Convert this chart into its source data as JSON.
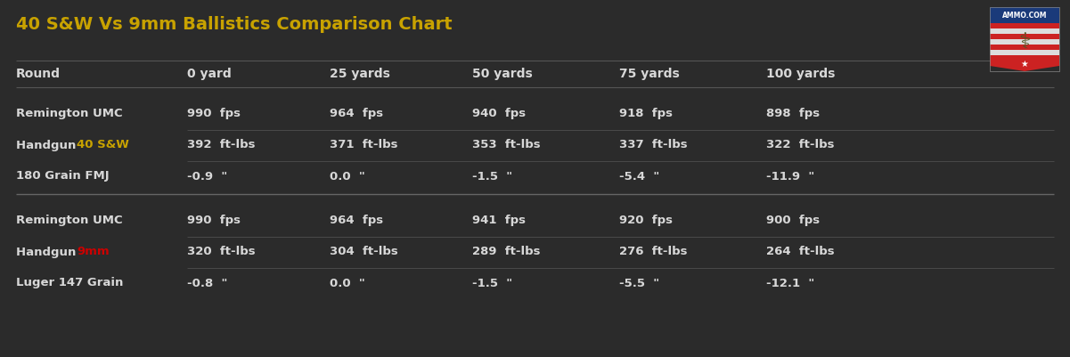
{
  "title": "40 S&W Vs 9mm Ballistics Comparison Chart",
  "title_color": "#c8a200",
  "bg_color": "#2b2b2b",
  "text_color": "#d8d8d8",
  "highlight_40sw": "#c8a200",
  "highlight_9mm": "#cc0000",
  "line_color": "#555555",
  "header_row": [
    "Round",
    "0 yard",
    "25 yards",
    "50 yards",
    "75 yards",
    "100 yards"
  ],
  "row1_line1": "Remington UMC",
  "row1_line2a": "Handgun ",
  "row1_line2b": "40 S&W",
  "row1_line3": "180 Grain FMJ",
  "row2_line1": "Remington UMC",
  "row2_line2a": "Handgun ",
  "row2_line2b": "9mm",
  "row2_line3": "Luger 147 Grain",
  "row1_data": [
    [
      "990  fps",
      "964  fps",
      "940  fps",
      "918  fps",
      "898  fps"
    ],
    [
      "392  ft-lbs",
      "371  ft-lbs",
      "353  ft-lbs",
      "337  ft-lbs",
      "322  ft-lbs"
    ],
    [
      "-0.9  \"",
      "0.0  \"",
      "-1.5  \"",
      "-5.4  \"",
      "-11.9  \""
    ]
  ],
  "row2_data": [
    [
      "990  fps",
      "964  fps",
      "941  fps",
      "920  fps",
      "900  fps"
    ],
    [
      "320  ft-lbs",
      "304  ft-lbs",
      "289  ft-lbs",
      "276  ft-lbs",
      "264  ft-lbs"
    ],
    [
      "-0.8  \"",
      "0.0  \"",
      "-1.5  \"",
      "-5.5  \"",
      "-12.1  \""
    ]
  ],
  "figsize": [
    12.01,
    4.01
  ],
  "dpi": 100
}
